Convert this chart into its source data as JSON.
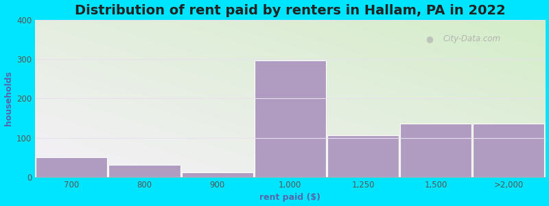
{
  "title": "Distribution of rent paid by renters in Hallam, PA in 2022",
  "xlabel": "rent paid ($)",
  "ylabel": "households",
  "bar_labels": [
    "700",
    "800",
    "900",
    "1,000",
    "1,250",
    "1,500",
    ">2,000"
  ],
  "bar_heights": [
    50,
    32,
    12,
    297,
    107,
    137,
    137
  ],
  "bar_color": "#b09cc0",
  "bar_edgecolor": "#ffffff",
  "ylim": [
    0,
    400
  ],
  "yticks": [
    0,
    100,
    200,
    300,
    400
  ],
  "background_outer": "#00e5ff",
  "background_inner_top_left": "#d4edc8",
  "background_inner_bottom_right": "#f5f0f8",
  "title_fontsize": 14,
  "axis_label_fontsize": 9,
  "tick_fontsize": 8.5,
  "watermark": "City-Data.com",
  "grid_color": "#e8e0ee",
  "tick_color": "#555555",
  "label_color": "#5566aa",
  "title_color": "#222222"
}
